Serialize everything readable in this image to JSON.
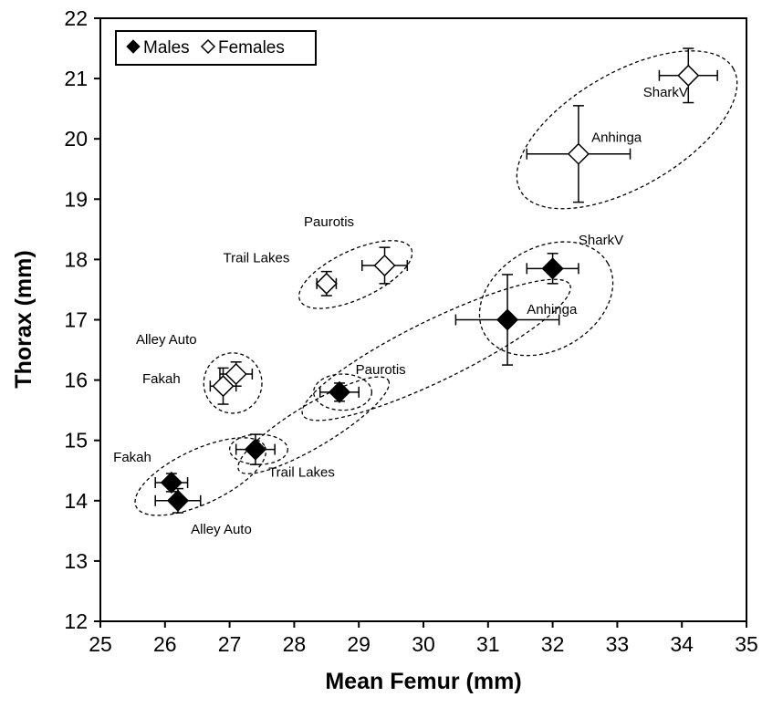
{
  "chart_data": {
    "type": "scatter",
    "xlabel": "Mean Femur (mm)",
    "ylabel": "Thorax (mm)",
    "xlim": [
      25,
      35
    ],
    "ylim": [
      12,
      22
    ],
    "x_ticks": [
      "25",
      "26",
      "27",
      "28",
      "29",
      "30",
      "31",
      "32",
      "33",
      "34",
      "35"
    ],
    "y_ticks": [
      "12",
      "13",
      "14",
      "15",
      "16",
      "17",
      "18",
      "19",
      "20",
      "21",
      "22"
    ],
    "grid": false,
    "legend_position": "top-left",
    "legend": [
      {
        "label": "Males",
        "marker": "filled-diamond"
      },
      {
        "label": "Females",
        "marker": "open-diamond"
      }
    ],
    "series": [
      {
        "name": "Males",
        "marker": "filled-diamond",
        "points": [
          {
            "label": "Fakah",
            "x": 26.1,
            "y": 14.3,
            "x_err": 0.25,
            "y_err": 0.15
          },
          {
            "label": "Alley Auto",
            "x": 26.2,
            "y": 14.0,
            "x_err": 0.35,
            "y_err": 0.2
          },
          {
            "label": "Trail Lakes",
            "x": 27.4,
            "y": 14.85,
            "x_err": 0.3,
            "y_err": 0.25
          },
          {
            "label": "Paurotis",
            "x": 28.7,
            "y": 15.8,
            "x_err": 0.3,
            "y_err": 0.15
          },
          {
            "label": "Anhinga",
            "x": 31.3,
            "y": 17.0,
            "x_err": 0.8,
            "y_err": 0.75
          },
          {
            "label": "SharkV",
            "x": 32.0,
            "y": 17.85,
            "x_err": 0.4,
            "y_err": 0.25
          }
        ]
      },
      {
        "name": "Females",
        "marker": "open-diamond",
        "points": [
          {
            "label": "Fakah",
            "x": 26.9,
            "y": 15.9,
            "x_err": 0.2,
            "y_err": 0.3
          },
          {
            "label": "Alley Auto",
            "x": 27.1,
            "y": 16.1,
            "x_err": 0.25,
            "y_err": 0.2
          },
          {
            "label": "Trail Lakes",
            "x": 28.5,
            "y": 17.6,
            "x_err": 0.15,
            "y_err": 0.2
          },
          {
            "label": "Paurotis",
            "x": 29.4,
            "y": 17.9,
            "x_err": 0.35,
            "y_err": 0.3
          },
          {
            "label": "Anhinga",
            "x": 32.4,
            "y": 19.75,
            "x_err": 0.8,
            "y_err": 0.8
          },
          {
            "label": "SharkV",
            "x": 34.1,
            "y": 21.05,
            "x_err": 0.45,
            "y_err": 0.45
          }
        ]
      }
    ],
    "groupings": [
      {
        "cx": 26.55,
        "cy": 14.4,
        "rx": 1.1,
        "ry": 0.45,
        "angle_deg": -25
      },
      {
        "cx": 27.45,
        "cy": 14.85,
        "rx": 0.45,
        "ry": 0.25,
        "angle_deg": 0
      },
      {
        "cx": 28.3,
        "cy": 15.25,
        "rx": 1.35,
        "ry": 0.35,
        "angle_deg": -31
      },
      {
        "cx": 28.75,
        "cy": 15.8,
        "rx": 0.45,
        "ry": 0.3,
        "angle_deg": 0
      },
      {
        "cx": 30.2,
        "cy": 16.5,
        "rx": 2.3,
        "ry": 0.5,
        "angle_deg": -26
      },
      {
        "cx": 31.9,
        "cy": 17.35,
        "rx": 1.1,
        "ry": 0.85,
        "angle_deg": -30
      },
      {
        "cx": 27.05,
        "cy": 15.95,
        "rx": 0.45,
        "ry": 0.5,
        "angle_deg": 0
      },
      {
        "cx": 28.95,
        "cy": 17.75,
        "rx": 0.95,
        "ry": 0.4,
        "angle_deg": -25
      },
      {
        "cx": 33.15,
        "cy": 20.15,
        "rx": 1.9,
        "ry": 0.95,
        "angle_deg": -30
      }
    ]
  },
  "labels": {
    "males": [
      {
        "text": "Fakah",
        "x": 25.2,
        "y": 14.65
      },
      {
        "text": "Alley Auto",
        "x": 26.4,
        "y": 13.45
      },
      {
        "text": "Trail Lakes",
        "x": 27.6,
        "y": 14.4
      },
      {
        "text": "Paurotis",
        "x": 28.95,
        "y": 16.1
      },
      {
        "text": "Anhinga",
        "x": 31.6,
        "y": 17.1
      },
      {
        "text": "SharkV",
        "x": 32.4,
        "y": 18.25
      }
    ],
    "females": [
      {
        "text": "Alley Auto",
        "x": 25.55,
        "y": 16.6
      },
      {
        "text": "Fakah",
        "x": 25.65,
        "y": 15.95
      },
      {
        "text": "Trail Lakes",
        "x": 26.9,
        "y": 17.95
      },
      {
        "text": "Paurotis",
        "x": 28.15,
        "y": 18.55
      },
      {
        "text": "Anhinga",
        "x": 32.6,
        "y": 19.95
      },
      {
        "text": "SharkV",
        "x": 33.4,
        "y": 20.7
      }
    ]
  }
}
